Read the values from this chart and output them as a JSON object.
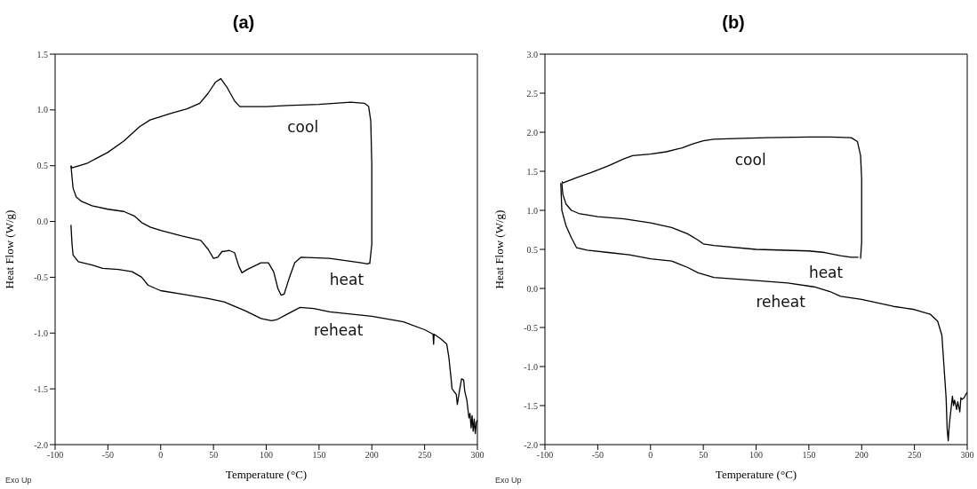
{
  "chart_data": [
    {
      "type": "line",
      "title": "(a)",
      "xlabel": "Temperature (°C)",
      "ylabel": "Heat Flow (W/g)",
      "xlim": [
        -100,
        300
      ],
      "xticks": [
        -100,
        -50,
        0,
        50,
        100,
        150,
        200,
        250,
        300
      ],
      "ylim": [
        -2,
        1.5
      ],
      "yticks": [
        {
          "value": -2,
          "label": "-2.0"
        },
        {
          "value": -1.5,
          "label": "-1.5"
        },
        {
          "value": -1,
          "label": "-1.0"
        },
        {
          "value": -0.5,
          "label": "-0.5"
        },
        {
          "value": 0,
          "label": "0.0"
        },
        {
          "value": 0.5,
          "label": "0.5"
        },
        {
          "value": 1,
          "label": "1.0"
        },
        {
          "value": 1.5,
          "label": "1.5"
        }
      ],
      "series": [
        {
          "name": "cool",
          "color": "#000000",
          "x": [
            198,
            200,
            200,
            199,
            197,
            193,
            180,
            150,
            120,
            100,
            75,
            70,
            63,
            57,
            52,
            45,
            37,
            25,
            10,
            0,
            -10,
            -20,
            -35,
            -50,
            -60,
            -70,
            -84,
            -85
          ],
          "values": [
            -0.38,
            -0.2,
            0.5,
            0.9,
            1.03,
            1.06,
            1.07,
            1.05,
            1.04,
            1.03,
            1.03,
            1.08,
            1.2,
            1.28,
            1.25,
            1.15,
            1.06,
            1.01,
            0.97,
            0.94,
            0.91,
            0.85,
            0.72,
            0.62,
            0.57,
            0.52,
            0.48,
            0.5
          ]
        },
        {
          "name": "heat",
          "color": "#000000",
          "x": [
            -85,
            -84,
            -83,
            -80,
            -75,
            -65,
            -50,
            -35,
            -25,
            -18,
            -10,
            0,
            20,
            38,
            45,
            50,
            54,
            58,
            65,
            70,
            74,
            77,
            82,
            95,
            102,
            107,
            111,
            114,
            117,
            122,
            127,
            133,
            160,
            190,
            196,
            198
          ],
          "values": [
            0.5,
            0.4,
            0.3,
            0.22,
            0.18,
            0.14,
            0.11,
            0.09,
            0.05,
            -0.01,
            -0.05,
            -0.08,
            -0.13,
            -0.17,
            -0.25,
            -0.33,
            -0.32,
            -0.27,
            -0.26,
            -0.28,
            -0.4,
            -0.46,
            -0.43,
            -0.37,
            -0.37,
            -0.45,
            -0.6,
            -0.66,
            -0.65,
            -0.5,
            -0.37,
            -0.32,
            -0.33,
            -0.37,
            -0.38,
            -0.37
          ]
        },
        {
          "name": "reheat",
          "color": "#000000",
          "x": [
            -85,
            -84,
            -83,
            -78,
            -65,
            -55,
            -40,
            -27,
            -18,
            -12,
            -5,
            0,
            20,
            45,
            60,
            80,
            95,
            105,
            110,
            120,
            132,
            145,
            160,
            200,
            230,
            250,
            258,
            258.5,
            259,
            265,
            271,
            273,
            275,
            276,
            280,
            281,
            283,
            285,
            287,
            288,
            290,
            292,
            293,
            294,
            295,
            296,
            297,
            298,
            299,
            300
          ],
          "values": [
            -0.03,
            -0.2,
            -0.3,
            -0.36,
            -0.39,
            -0.42,
            -0.43,
            -0.45,
            -0.5,
            -0.57,
            -0.6,
            -0.62,
            -0.65,
            -0.69,
            -0.72,
            -0.8,
            -0.87,
            -0.89,
            -0.88,
            -0.83,
            -0.77,
            -0.78,
            -0.81,
            -0.85,
            -0.9,
            -0.97,
            -1.01,
            -1.1,
            -1.01,
            -1.05,
            -1.1,
            -1.22,
            -1.4,
            -1.5,
            -1.55,
            -1.64,
            -1.52,
            -1.41,
            -1.42,
            -1.52,
            -1.6,
            -1.76,
            -1.72,
            -1.85,
            -1.74,
            -1.88,
            -1.77,
            -1.9,
            -1.8,
            -1.78
          ]
        }
      ],
      "annotations": [
        "Exo Up"
      ]
    },
    {
      "type": "line",
      "title": "(b)",
      "xlabel": "Temperature (°C)",
      "ylabel": "Heat Flow (W/g)",
      "xlim": [
        -100,
        300
      ],
      "xticks": [
        -100,
        -50,
        0,
        50,
        100,
        150,
        200,
        250,
        300
      ],
      "ylim": [
        -2,
        3
      ],
      "yticks": [
        {
          "value": -2,
          "label": "-2.0"
        },
        {
          "value": -1.5,
          "label": "-1.5"
        },
        {
          "value": -1,
          "label": "-1.0"
        },
        {
          "value": -0.5,
          "label": "-0.5"
        },
        {
          "value": 0,
          "label": "0.0"
        },
        {
          "value": 0.5,
          "label": "0.5"
        },
        {
          "value": 1,
          "label": "1.0"
        },
        {
          "value": 1.5,
          "label": "1.5"
        },
        {
          "value": 2,
          "label": "2.0"
        },
        {
          "value": 2.5,
          "label": "2.5"
        },
        {
          "value": 3,
          "label": "3.0"
        }
      ],
      "series": [
        {
          "name": "cool",
          "color": "#000000",
          "x": [
            199,
            200,
            200,
            199,
            196,
            190,
            170,
            150,
            110,
            80,
            60,
            50,
            40,
            30,
            15,
            0,
            -17,
            -25,
            -40,
            -55,
            -70,
            -83,
            -84
          ],
          "values": [
            0.38,
            0.6,
            1.4,
            1.7,
            1.88,
            1.93,
            1.94,
            1.94,
            1.93,
            1.92,
            1.91,
            1.89,
            1.85,
            1.8,
            1.75,
            1.72,
            1.7,
            1.66,
            1.57,
            1.49,
            1.42,
            1.35,
            1.37
          ]
        },
        {
          "name": "heat",
          "color": "#000000",
          "x": [
            -84,
            -83,
            -80,
            -75,
            -68,
            -50,
            -25,
            0,
            20,
            35,
            45,
            50,
            60,
            100,
            150,
            165,
            180,
            190,
            197
          ],
          "values": [
            1.35,
            1.2,
            1.08,
            1.0,
            0.96,
            0.92,
            0.89,
            0.84,
            0.78,
            0.7,
            0.62,
            0.57,
            0.55,
            0.5,
            0.48,
            0.46,
            0.42,
            0.4,
            0.4
          ]
        },
        {
          "name": "reheat",
          "color": "#000000",
          "x": [
            -85,
            -84,
            -80,
            -75,
            -70,
            -60,
            -40,
            -20,
            0,
            20,
            35,
            45,
            60,
            80,
            100,
            130,
            155,
            170,
            180,
            200,
            230,
            250,
            265,
            272,
            276,
            278,
            280,
            281,
            282,
            283,
            285,
            286,
            287,
            288,
            290,
            291,
            293,
            294,
            295,
            297,
            299,
            300
          ],
          "values": [
            1.35,
            1.0,
            0.8,
            0.65,
            0.52,
            0.49,
            0.46,
            0.43,
            0.38,
            0.35,
            0.27,
            0.2,
            0.14,
            0.12,
            0.1,
            0.07,
            0.02,
            -0.04,
            -0.1,
            -0.14,
            -0.23,
            -0.27,
            -0.33,
            -0.42,
            -0.6,
            -1.0,
            -1.4,
            -1.8,
            -1.95,
            -1.75,
            -1.5,
            -1.38,
            -1.5,
            -1.43,
            -1.55,
            -1.45,
            -1.58,
            -1.4,
            -1.42,
            -1.4,
            -1.35,
            -1.33
          ]
        }
      ],
      "annotations": [
        "Exo Up"
      ]
    }
  ]
}
